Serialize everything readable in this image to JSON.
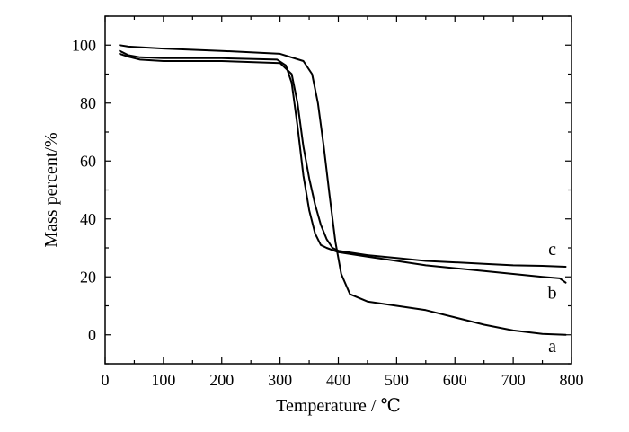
{
  "chart_data": {
    "type": "line",
    "xlabel": "Temperature / ℃",
    "ylabel": "Mass percent/%",
    "xlim": [
      0,
      800
    ],
    "ylim": [
      -10,
      110
    ],
    "xticks": [
      0,
      100,
      200,
      300,
      400,
      500,
      600,
      700,
      800
    ],
    "yticks": [
      0,
      20,
      40,
      60,
      80,
      100
    ],
    "xtick_labels": [
      "0",
      "100",
      "200",
      "300",
      "400",
      "500",
      "600",
      "700",
      "800"
    ],
    "ytick_labels": [
      "0",
      "20",
      "40",
      "60",
      "80",
      "100"
    ],
    "grid": false,
    "legend": "none",
    "line_color": "#000000",
    "series": [
      {
        "name": "a",
        "x": [
          25,
          40,
          100,
          200,
          300,
          340,
          355,
          365,
          375,
          385,
          395,
          405,
          420,
          450,
          500,
          550,
          600,
          650,
          700,
          750,
          790
        ],
        "y": [
          100,
          99.5,
          98.8,
          98.0,
          97.0,
          94.5,
          90.0,
          80.0,
          65.0,
          48.0,
          32.0,
          21.0,
          14.0,
          11.5,
          10.0,
          8.5,
          6.0,
          3.5,
          1.5,
          0.3,
          0
        ]
      },
      {
        "name": "b",
        "x": [
          25,
          40,
          60,
          100,
          200,
          295,
          310,
          320,
          330,
          340,
          350,
          360,
          370,
          380,
          400,
          450,
          500,
          550,
          600,
          650,
          700,
          750,
          780,
          790
        ],
        "y": [
          98,
          96.5,
          95.8,
          95.5,
          95.5,
          95.0,
          93.0,
          87.0,
          72.0,
          55.0,
          43.0,
          35.0,
          31.0,
          30.0,
          28.5,
          27.0,
          25.5,
          24.0,
          23.0,
          22.0,
          21.0,
          20.0,
          19.5,
          18.0
        ]
      },
      {
        "name": "c",
        "x": [
          25,
          40,
          60,
          100,
          200,
          300,
          320,
          330,
          340,
          350,
          360,
          370,
          380,
          390,
          400,
          450,
          500,
          550,
          600,
          650,
          700,
          750,
          790
        ],
        "y": [
          97,
          96.0,
          95.0,
          94.5,
          94.5,
          93.8,
          90.0,
          80.0,
          65.0,
          54.0,
          45.0,
          38.0,
          33.0,
          30.0,
          29.0,
          27.5,
          26.5,
          25.5,
          25.0,
          24.5,
          24.0,
          23.8,
          23.5
        ]
      }
    ]
  }
}
